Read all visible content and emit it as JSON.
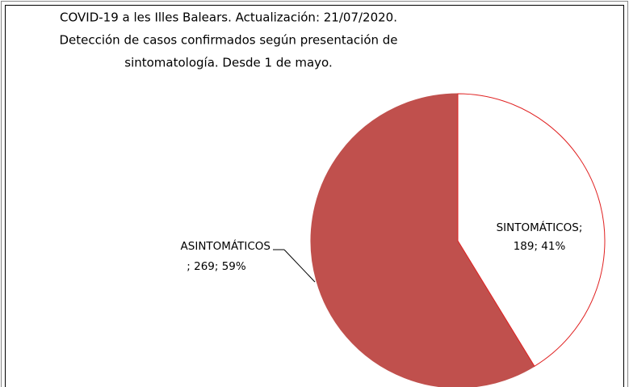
{
  "chart_data": {
    "type": "pie",
    "title": [
      "COVID-19 a les Illes Balears. Actualización: 21/07/2020.",
      "Detección de casos confirmados según presentación de",
      "sintomatología. Desde 1 de mayo."
    ],
    "values": [
      189,
      269
    ],
    "value_labels": [
      [
        "SINTOMÁTICOS;",
        "189; 41%"
      ],
      [
        "ASINTOMÁTICOS",
        "; 269; 59%"
      ]
    ],
    "colors": [
      "#ffffff",
      "#c0504d"
    ],
    "stroke": "#e02020"
  }
}
